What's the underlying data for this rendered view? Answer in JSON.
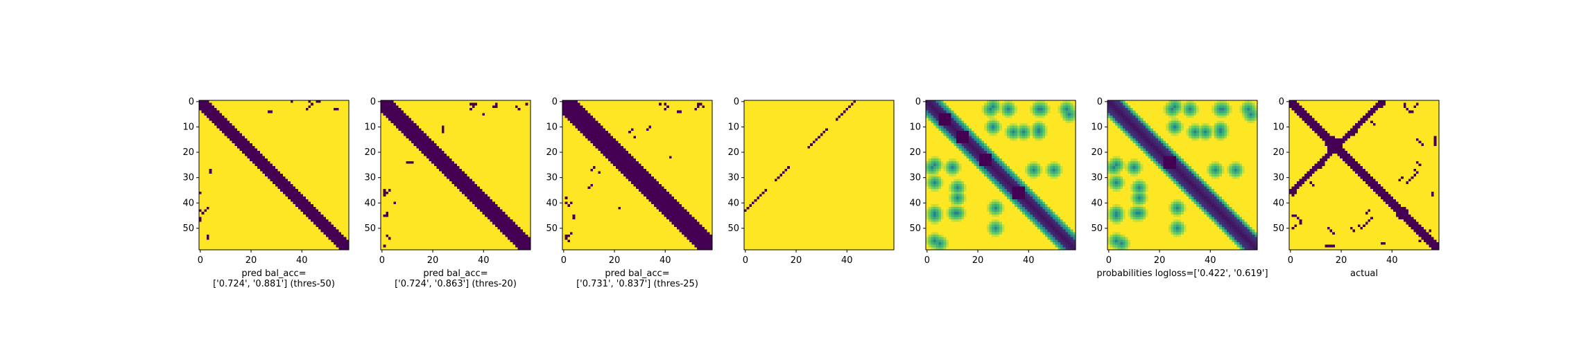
{
  "figure": {
    "background": "#ffffff",
    "colormap": "viridis",
    "colormap_stops": [
      "#440154",
      "#3b528b",
      "#21918c",
      "#5ec962",
      "#fde725"
    ]
  },
  "chart_data": [
    {
      "type": "heatmap",
      "panel": 1,
      "rendering": "binary",
      "matrix_size": 59,
      "xticks": [
        0,
        20,
        40
      ],
      "yticks": [
        0,
        10,
        20,
        30,
        40,
        50
      ],
      "xlabel": "pred bal_acc=\n['0.724', '0.881'] (thres-50)",
      "values": {
        "main_diagonal_band_width": 3,
        "blob_at_center": [
          25,
          25
        ],
        "blob_radius": 2.5,
        "isolated_dark_pixels": [
          [
            0,
            43
          ],
          [
            0,
            46
          ],
          [
            0,
            47
          ],
          [
            27,
            4
          ],
          [
            28,
            4
          ],
          [
            36,
            0
          ],
          [
            42,
            3
          ],
          [
            43,
            2
          ],
          [
            44,
            1
          ],
          [
            53,
            3
          ],
          [
            54,
            3
          ]
        ]
      },
      "grid": false
    },
    {
      "type": "heatmap",
      "panel": 2,
      "rendering": "binary",
      "matrix_size": 59,
      "xticks": [
        0,
        20,
        40
      ],
      "yticks": [
        0,
        10,
        20,
        30,
        40,
        50
      ],
      "xlabel": "pred bal_acc=\n['0.724', '0.863'] (thres-20)",
      "values": {
        "main_diagonal_band_width": 4,
        "blob_at_center": [
          24,
          24
        ],
        "blob_radius": 3,
        "isolated_dark_pixels": [
          [
            1,
            35
          ],
          [
            1,
            36
          ],
          [
            1,
            45
          ],
          [
            1,
            57
          ],
          [
            2,
            44
          ],
          [
            10,
            24
          ],
          [
            11,
            24
          ],
          [
            24,
            12
          ],
          [
            35,
            3
          ],
          [
            36,
            2
          ],
          [
            37,
            1
          ],
          [
            40,
            5
          ],
          [
            44,
            2
          ],
          [
            45,
            2
          ],
          [
            53,
            2
          ],
          [
            54,
            3
          ]
        ]
      },
      "grid": false
    },
    {
      "type": "heatmap",
      "panel": 3,
      "rendering": "binary",
      "matrix_size": 59,
      "xticks": [
        0,
        20,
        40
      ],
      "yticks": [
        0,
        10,
        20,
        30,
        40,
        50
      ],
      "xlabel": "pred bal_acc=\n['0.731', '0.837'] (thres-25)",
      "values": {
        "main_diagonal_band_width": 5,
        "blob_at_center": [
          24,
          24
        ],
        "blob_radius": 4,
        "isolated_dark_pixels": [
          [
            1,
            38
          ],
          [
            1,
            40
          ],
          [
            1,
            53
          ],
          [
            1,
            54
          ],
          [
            2,
            55
          ],
          [
            11,
            27
          ],
          [
            12,
            26
          ],
          [
            14,
            28
          ],
          [
            22,
            42
          ],
          [
            33,
            11
          ],
          [
            34,
            10
          ],
          [
            40,
            3
          ],
          [
            41,
            2
          ],
          [
            45,
            4
          ],
          [
            46,
            4
          ],
          [
            52,
            3
          ],
          [
            53,
            2
          ],
          [
            54,
            56
          ],
          [
            55,
            55
          ]
        ]
      },
      "grid": false
    },
    {
      "type": "heatmap",
      "panel": 4,
      "rendering": "binary",
      "matrix_size": 59,
      "xticks": [
        0,
        20,
        40
      ],
      "yticks": [
        0,
        10,
        20,
        30,
        40,
        50
      ],
      "xlabel": "",
      "values": {
        "anti_diagonal_line": {
          "from": [
            43,
            0
          ],
          "to": [
            0,
            44
          ],
          "segments": [
            [
              0,
              8
            ],
            [
              12,
              17
            ],
            [
              25,
              32
            ],
            [
              36,
              44
            ]
          ]
        }
      },
      "grid": false
    },
    {
      "type": "heatmap",
      "panel": 5,
      "rendering": "continuous",
      "matrix_size": 59,
      "xticks": [
        0,
        20,
        40
      ],
      "yticks": [
        0,
        10,
        20,
        30,
        40,
        50
      ],
      "xlabel": "",
      "values": {
        "main_diagonal_band_width": 4,
        "band_edge_stripes": true,
        "dark_spots_on_diagonal": [
          7,
          14,
          23,
          36
        ],
        "off_diagonal_arc_spots": [
          [
            3,
            25
          ],
          [
            3,
            32
          ],
          [
            3,
            45
          ],
          [
            5,
            56
          ],
          [
            10,
            26
          ],
          [
            12,
            38
          ],
          [
            12,
            44
          ],
          [
            26,
            2
          ],
          [
            27,
            42
          ],
          [
            27,
            50
          ],
          [
            34,
            12
          ],
          [
            44,
            11
          ],
          [
            44,
            3
          ],
          [
            55,
            3
          ]
        ],
        "value_range": [
          0,
          1
        ]
      },
      "grid": false
    },
    {
      "type": "heatmap",
      "panel": 6,
      "rendering": "continuous",
      "matrix_size": 59,
      "xticks": [
        0,
        20,
        40
      ],
      "yticks": [
        0,
        10,
        20,
        30,
        40,
        50
      ],
      "xlabel": "probabilities logloss=['0.422', '0.619']",
      "values": {
        "main_diagonal_band_width": 4,
        "band_edge_stripes": false,
        "dark_spots_on_diagonal": [
          24
        ],
        "off_diagonal_arc_spots": [
          [
            3,
            25
          ],
          [
            3,
            32
          ],
          [
            3,
            45
          ],
          [
            5,
            56
          ],
          [
            10,
            26
          ],
          [
            12,
            38
          ],
          [
            12,
            44
          ],
          [
            26,
            2
          ],
          [
            27,
            42
          ],
          [
            27,
            50
          ],
          [
            34,
            12
          ],
          [
            44,
            11
          ],
          [
            44,
            3
          ],
          [
            55,
            3
          ]
        ],
        "value_range": [
          0,
          1
        ]
      },
      "grid": false
    },
    {
      "type": "heatmap",
      "panel": 7,
      "rendering": "binary",
      "matrix_size": 59,
      "xticks": [
        0,
        20,
        40
      ],
      "yticks": [
        0,
        10,
        20,
        30,
        40,
        50
      ],
      "xlabel": "actual",
      "values": {
        "main_diagonal_band_width": 2,
        "anti_diagonal_band": {
          "from": [
            35,
            1
          ],
          "to": [
            1,
            35
          ],
          "width": 3
        },
        "blobs": [
          {
            "center": [
              17,
              17
            ],
            "radius": 3
          },
          {
            "center": [
              44,
              44
            ],
            "radius": 2.5
          }
        ],
        "isolated_dark_pixels": [
          [
            1,
            36
          ],
          [
            1,
            37
          ],
          [
            2,
            36
          ],
          [
            1,
            45
          ],
          [
            1,
            50
          ],
          [
            2,
            49
          ],
          [
            8,
            32
          ],
          [
            9,
            33
          ],
          [
            12,
            26
          ],
          [
            13,
            25
          ],
          [
            14,
            57
          ],
          [
            15,
            57
          ],
          [
            16,
            57
          ],
          [
            17,
            57
          ],
          [
            27,
            49
          ],
          [
            28,
            50
          ],
          [
            30,
            44
          ],
          [
            31,
            43
          ],
          [
            36,
            56
          ],
          [
            37,
            56
          ],
          [
            45,
            2
          ],
          [
            46,
            3
          ],
          [
            47,
            4
          ],
          [
            48,
            4
          ],
          [
            50,
            24
          ],
          [
            51,
            25
          ],
          [
            50,
            15
          ],
          [
            51,
            16
          ],
          [
            52,
            17
          ],
          [
            46,
            32
          ],
          [
            47,
            31
          ],
          [
            48,
            30
          ],
          [
            49,
            29
          ],
          [
            50,
            28
          ],
          [
            54,
            52
          ],
          [
            55,
            51
          ]
        ]
      },
      "grid": false
    }
  ]
}
